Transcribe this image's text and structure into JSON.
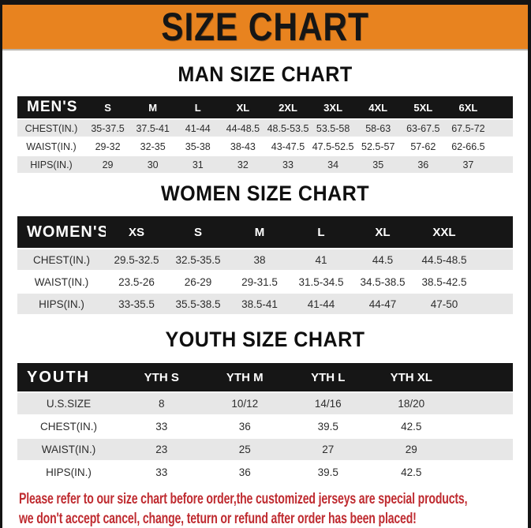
{
  "banner": {
    "title": "SIZE CHART",
    "bg_color": "#E8831F",
    "text_color": "#161616"
  },
  "sections": [
    {
      "title": "MAN SIZE CHART",
      "header": [
        "MEN'S",
        "S",
        "M",
        "L",
        "XL",
        "2XL",
        "3XL",
        "4XL",
        "5XL",
        "6XL"
      ],
      "rows": [
        {
          "label": "CHEST(IN.)",
          "values": [
            "35-37.5",
            "37.5-41",
            "41-44",
            "44-48.5",
            "48.5-53.5",
            "53.5-58",
            "58-63",
            "63-67.5",
            "67.5-72"
          ]
        },
        {
          "label": "WAIST(IN.)",
          "values": [
            "29-32",
            "32-35",
            "35-38",
            "38-43",
            "43-47.5",
            "47.5-52.5",
            "52.5-57",
            "57-62",
            "62-66.5"
          ]
        },
        {
          "label": "HIPS(IN.)",
          "values": [
            "29",
            "30",
            "31",
            "32",
            "33",
            "34",
            "35",
            "36",
            "37"
          ]
        }
      ]
    },
    {
      "title": "WOMEN SIZE CHART",
      "header": [
        "WOMEN'S",
        "XS",
        "S",
        "M",
        "L",
        "XL",
        "XXL"
      ],
      "rows": [
        {
          "label": "CHEST(IN.)",
          "values": [
            "29.5-32.5",
            "32.5-35.5",
            "38",
            "41",
            "44.5",
            "44.5-48.5"
          ]
        },
        {
          "label": "WAIST(IN.)",
          "values": [
            "23.5-26",
            "26-29",
            "29-31.5",
            "31.5-34.5",
            "34.5-38.5",
            "38.5-42.5"
          ]
        },
        {
          "label": "HIPS(IN.)",
          "values": [
            "33-35.5",
            "35.5-38.5",
            "38.5-41",
            "41-44",
            "44-47",
            "47-50"
          ]
        }
      ]
    },
    {
      "title": "YOUTH SIZE CHART",
      "header": [
        "YOUTH",
        "YTH S",
        "YTH M",
        "YTH L",
        "YTH XL"
      ],
      "rows": [
        {
          "label": "U.S.SIZE",
          "values": [
            "8",
            "10/12",
            "14/16",
            "18/20"
          ]
        },
        {
          "label": "CHEST(IN.)",
          "values": [
            "33",
            "36",
            "39.5",
            "42.5"
          ]
        },
        {
          "label": "WAIST(IN.)",
          "values": [
            "23",
            "25",
            "27",
            "29"
          ]
        },
        {
          "label": "HIPS(IN.)",
          "values": [
            "33",
            "36",
            "39.5",
            "42.5"
          ]
        }
      ]
    }
  ],
  "disclaimer": {
    "lines": [
      "Please refer to our size chart before order,the customized jerseys are special products,",
      "we don't accept cancel, change, teturn or refund after order has been placed!"
    ],
    "color": "#BF2B30"
  },
  "colors": {
    "accent_orange": "#E8831F",
    "table_header_bg": "#161616",
    "row_alt_gray": "#E7E7E7",
    "disclaimer_red": "#BF2B30"
  }
}
